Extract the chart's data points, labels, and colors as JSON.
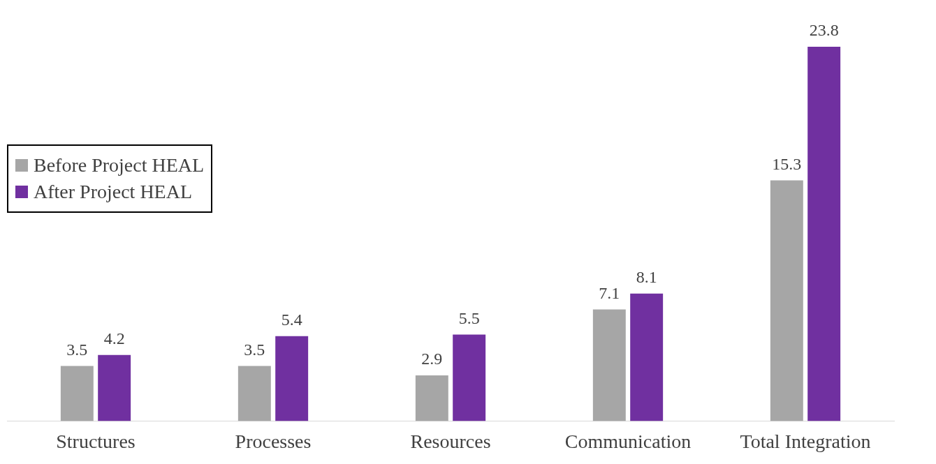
{
  "chart_data": {
    "type": "bar",
    "categories": [
      "Structures",
      "Processes",
      "Resources",
      "Communication",
      "Total Integration"
    ],
    "series": [
      {
        "name": "Before Project HEAL",
        "color": "#a6a6a6",
        "values": [
          3.5,
          3.5,
          2.9,
          7.1,
          15.3
        ]
      },
      {
        "name": "After Project HEAL",
        "color": "#7030a0",
        "values": [
          4.2,
          5.4,
          5.5,
          8.1,
          23.8
        ]
      }
    ],
    "data_labels": true,
    "legend": "top left",
    "grid": false
  }
}
